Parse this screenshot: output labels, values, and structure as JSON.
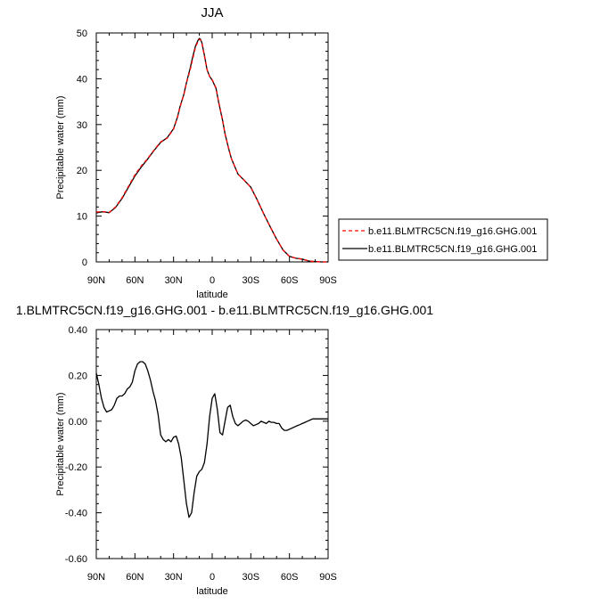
{
  "chart_data": [
    {
      "type": "line",
      "title": "JJA",
      "xlabel": "latitude",
      "ylabel": "Precipitable water (mm)",
      "x_ticks": [
        "90N",
        "60N",
        "30N",
        "0",
        "30S",
        "60S",
        "90S"
      ],
      "y_ticks": [
        "0",
        "10",
        "20",
        "30",
        "40",
        "50"
      ],
      "xlim": [
        -90,
        90
      ],
      "ylim": [
        0,
        50
      ],
      "legend_position": "right",
      "series": [
        {
          "name": "b.e11.BLMTRC5CN.f19_g16.GHG.001",
          "color": "#ff0000",
          "dash": "dashed",
          "x": [
            -90,
            -85,
            -80,
            -75,
            -70,
            -65,
            -60,
            -55,
            -50,
            -45,
            -40,
            -35,
            -30,
            -27,
            -25,
            -22,
            -20,
            -17,
            -15,
            -13,
            -11,
            -10,
            -9,
            -8,
            -6,
            -4,
            -2,
            0,
            3,
            5,
            8,
            10,
            13,
            15,
            20,
            25,
            30,
            35,
            40,
            45,
            50,
            55,
            60,
            65,
            70,
            75,
            80,
            85,
            90
          ],
          "values": [
            10.9,
            11.0,
            10.8,
            12.0,
            14.0,
            16.5,
            19.0,
            21.0,
            22.6,
            24.5,
            26.2,
            27.0,
            29.0,
            31.5,
            33.8,
            36.5,
            39.0,
            42.0,
            44.5,
            46.8,
            48.2,
            48.6,
            48.5,
            47.8,
            45.0,
            42.0,
            40.5,
            39.8,
            38.0,
            35.0,
            31.0,
            28.0,
            24.5,
            22.5,
            19.2,
            17.8,
            16.3,
            13.5,
            10.5,
            7.7,
            5.0,
            2.6,
            1.2,
            0.8,
            0.6,
            0.2,
            0.05,
            0.0,
            0.0
          ]
        },
        {
          "name": "b.e11.BLMTRC5CN.f19_g16.GHG.001",
          "color": "#000000",
          "dash": "solid",
          "x": [
            -90,
            -85,
            -80,
            -75,
            -70,
            -65,
            -60,
            -55,
            -50,
            -45,
            -40,
            -35,
            -30,
            -27,
            -25,
            -22,
            -20,
            -17,
            -15,
            -13,
            -11,
            -10,
            -9,
            -8,
            -6,
            -4,
            -2,
            0,
            3,
            5,
            8,
            10,
            13,
            15,
            20,
            25,
            30,
            35,
            40,
            45,
            50,
            55,
            60,
            65,
            70,
            75,
            80,
            85,
            90
          ],
          "values": [
            10.7,
            10.95,
            10.75,
            11.9,
            13.85,
            16.3,
            18.75,
            20.75,
            22.5,
            24.4,
            26.1,
            27.1,
            29.1,
            31.6,
            33.9,
            36.6,
            39.1,
            42.4,
            44.9,
            47.1,
            48.4,
            48.8,
            48.6,
            47.9,
            45.1,
            42.0,
            40.5,
            39.7,
            37.9,
            34.9,
            30.95,
            27.95,
            24.47,
            22.48,
            19.18,
            17.79,
            16.3,
            13.5,
            10.5,
            7.7,
            5.0,
            2.6,
            1.2,
            0.8,
            0.6,
            0.2,
            0.05,
            0.0,
            0.0
          ]
        }
      ]
    },
    {
      "type": "line",
      "title": "1.BLMTRC5CN.f19_g16.GHG.001 - b.e11.BLMTRC5CN.f19_g16.GHG.001",
      "xlabel": "latitude",
      "ylabel": "Precipitable water (mm)",
      "x_ticks": [
        "90N",
        "60N",
        "30N",
        "0",
        "30S",
        "60S",
        "90S"
      ],
      "y_ticks": [
        "-0.60",
        "-0.40",
        "-0.20",
        "0.00",
        "0.20",
        "0.40"
      ],
      "xlim": [
        -90,
        90
      ],
      "ylim": [
        -0.6,
        0.4
      ],
      "series": [
        {
          "color": "#000000",
          "dash": "solid",
          "x": [
            -90,
            -88,
            -86,
            -84,
            -82,
            -80,
            -78,
            -76,
            -74,
            -72,
            -70,
            -68,
            -66,
            -64,
            -62,
            -60,
            -58,
            -56,
            -54,
            -52,
            -50,
            -48,
            -46,
            -44,
            -42,
            -40,
            -38,
            -36,
            -34,
            -32,
            -30,
            -28,
            -26,
            -24,
            -22,
            -20,
            -18,
            -16,
            -14,
            -12,
            -10,
            -8,
            -6,
            -4,
            -2,
            0,
            2,
            4,
            6,
            8,
            10,
            12,
            14,
            16,
            18,
            20,
            22,
            24,
            26,
            28,
            30,
            32,
            34,
            36,
            38,
            40,
            42,
            44,
            46,
            48,
            50,
            52,
            54,
            56,
            58,
            60,
            62,
            64,
            66,
            68,
            70,
            72,
            74,
            76,
            78,
            80,
            82,
            84,
            86,
            88,
            90
          ],
          "values": [
            0.21,
            0.16,
            0.1,
            0.06,
            0.04,
            0.045,
            0.05,
            0.07,
            0.1,
            0.11,
            0.11,
            0.12,
            0.14,
            0.15,
            0.17,
            0.22,
            0.25,
            0.26,
            0.26,
            0.25,
            0.22,
            0.18,
            0.13,
            0.09,
            0.03,
            -0.06,
            -0.08,
            -0.09,
            -0.08,
            -0.09,
            -0.07,
            -0.065,
            -0.1,
            -0.16,
            -0.26,
            -0.36,
            -0.42,
            -0.4,
            -0.31,
            -0.24,
            -0.22,
            -0.21,
            -0.18,
            -0.1,
            0.02,
            0.1,
            0.12,
            0.05,
            -0.05,
            -0.06,
            0.0,
            0.06,
            0.07,
            0.02,
            -0.01,
            -0.02,
            -0.01,
            0.0,
            0.005,
            0.0,
            -0.01,
            -0.02,
            -0.015,
            -0.01,
            0.0,
            -0.005,
            -0.01,
            0.0,
            -0.005,
            -0.005,
            -0.01,
            -0.01,
            -0.03,
            -0.04,
            -0.04,
            -0.035,
            -0.03,
            -0.025,
            -0.02,
            -0.015,
            -0.01,
            -0.005,
            0.0,
            0.005,
            0.01,
            0.01,
            0.01,
            0.01,
            0.01,
            0.01,
            0.01
          ]
        }
      ]
    }
  ]
}
